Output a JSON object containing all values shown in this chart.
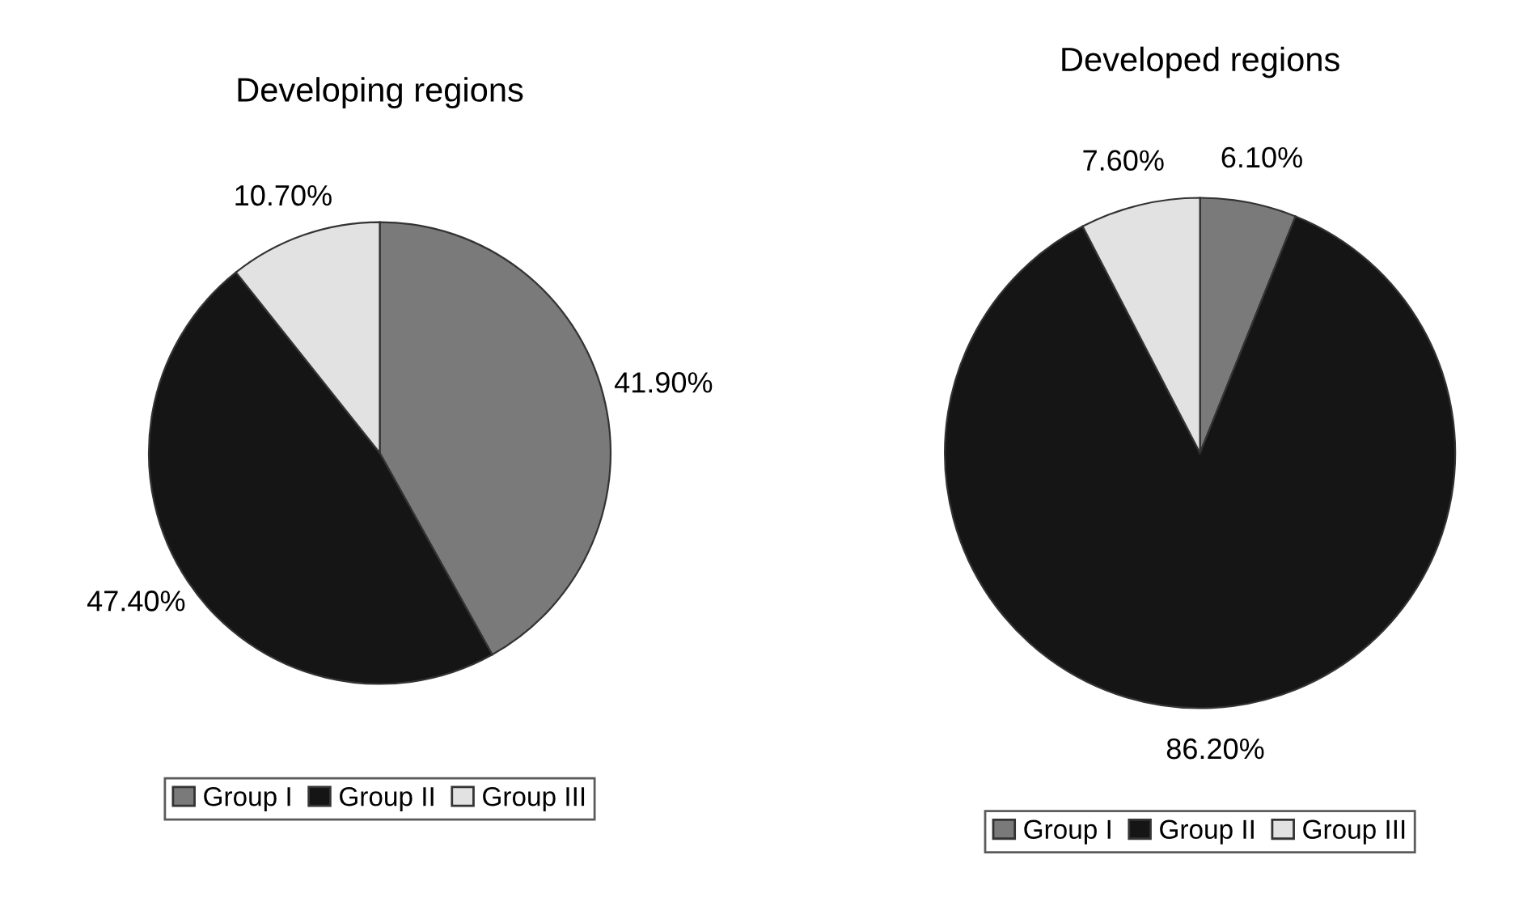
{
  "chart_data": [
    {
      "type": "pie",
      "title": "Developing regions",
      "categories": [
        "Group I",
        "Group II",
        "Group III"
      ],
      "values": [
        41.9,
        47.4,
        10.7
      ],
      "value_labels": [
        "41.90%",
        "47.40%",
        "10.70%"
      ],
      "colors": [
        "#7a7a7a",
        "#151515",
        "#e2e2e2"
      ],
      "legend": "bottom"
    },
    {
      "type": "pie",
      "title": "Developed regions",
      "categories": [
        "Group I",
        "Group II",
        "Group III"
      ],
      "values": [
        6.1,
        86.2,
        7.6
      ],
      "value_labels": [
        "6.10%",
        "86.20%",
        "7.60%"
      ],
      "colors": [
        "#7a7a7a",
        "#151515",
        "#e2e2e2"
      ],
      "legend": "bottom"
    }
  ]
}
